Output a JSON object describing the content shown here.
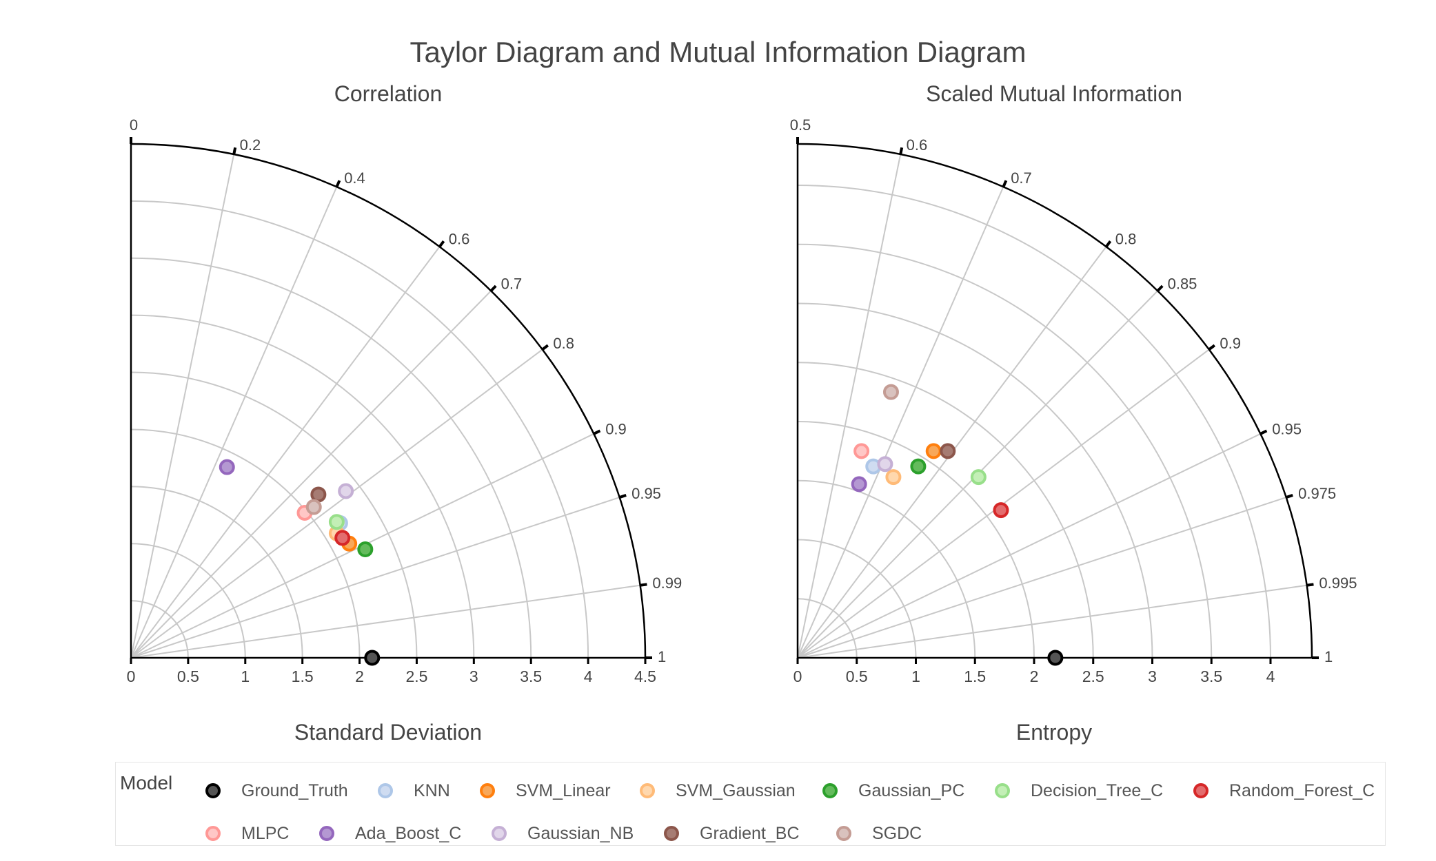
{
  "title": "Taylor Diagram and Mutual Information Diagram",
  "chart_data": [
    {
      "type": "scatter",
      "subtype": "taylor-diagram",
      "title": "Correlation",
      "xlabel": "Standard Deviation",
      "radial_range": [
        0,
        4.5
      ],
      "radial_ticks": [
        "0",
        "0.5",
        "1",
        "1.5",
        "2",
        "2.5",
        "3",
        "3.5",
        "4",
        "4.5"
      ],
      "angular_ticks": [
        "0",
        "0.2",
        "0.4",
        "0.6",
        "0.7",
        "0.8",
        "0.9",
        "0.95",
        "0.99",
        "1"
      ],
      "grid": true,
      "points": [
        {
          "model": "Ground_Truth",
          "x": 2.11,
          "y": 0.0
        },
        {
          "model": "KNN",
          "x": 1.83,
          "y": 1.18
        },
        {
          "model": "SVM_Linear",
          "x": 1.91,
          "y": 1.0
        },
        {
          "model": "SVM_Gaussian",
          "x": 1.8,
          "y": 1.09
        },
        {
          "model": "Gaussian_PC",
          "x": 2.05,
          "y": 0.95
        },
        {
          "model": "Decision_Tree_C",
          "x": 1.8,
          "y": 1.19
        },
        {
          "model": "Random_Forest_C",
          "x": 1.85,
          "y": 1.05
        },
        {
          "model": "MLPC",
          "x": 1.52,
          "y": 1.27
        },
        {
          "model": "Ada_Boost_C",
          "x": 0.84,
          "y": 1.67
        },
        {
          "model": "Gaussian_NB",
          "x": 1.88,
          "y": 1.46
        },
        {
          "model": "Gradient_BC",
          "x": 1.64,
          "y": 1.43
        },
        {
          "model": "SGDC",
          "x": 1.6,
          "y": 1.32
        }
      ]
    },
    {
      "type": "scatter",
      "subtype": "mutual-information-diagram",
      "title": "Scaled Mutual Information",
      "xlabel": "Entropy",
      "radial_range": [
        0,
        4.35
      ],
      "radial_ticks": [
        "0",
        "0.5",
        "1",
        "1.5",
        "2",
        "2.5",
        "3",
        "3.5",
        "4"
      ],
      "angular_ticks": [
        "0.5",
        "0.6",
        "0.7",
        "0.8",
        "0.85",
        "0.9",
        "0.95",
        "0.975",
        "0.995",
        "1"
      ],
      "grid": true,
      "points": [
        {
          "model": "Ground_Truth",
          "x": 2.18,
          "y": 0.0
        },
        {
          "model": "KNN",
          "x": 0.64,
          "y": 1.62
        },
        {
          "model": "SVM_Linear",
          "x": 1.15,
          "y": 1.75
        },
        {
          "model": "SVM_Gaussian",
          "x": 0.81,
          "y": 1.53
        },
        {
          "model": "Gaussian_PC",
          "x": 1.02,
          "y": 1.62
        },
        {
          "model": "Decision_Tree_C",
          "x": 1.53,
          "y": 1.53
        },
        {
          "model": "Random_Forest_C",
          "x": 1.72,
          "y": 1.25
        },
        {
          "model": "MLPC",
          "x": 0.54,
          "y": 1.75
        },
        {
          "model": "Ada_Boost_C",
          "x": 0.52,
          "y": 1.47
        },
        {
          "model": "Gaussian_NB",
          "x": 0.74,
          "y": 1.64
        },
        {
          "model": "Gradient_BC",
          "x": 1.27,
          "y": 1.75
        },
        {
          "model": "SGDC",
          "x": 0.79,
          "y": 2.25
        }
      ]
    }
  ],
  "legend": {
    "title": "Model",
    "placement": "bottom",
    "items": [
      {
        "name": "Ground_Truth",
        "fill": "#555555",
        "stroke": "#000000"
      },
      {
        "name": "KNN",
        "fill": "#cfdcf1",
        "stroke": "#aec7e8"
      },
      {
        "name": "SVM_Linear",
        "fill": "#f8a85a",
        "stroke": "#ff7f0e"
      },
      {
        "name": "SVM_Gaussian",
        "fill": "#ffd8ae",
        "stroke": "#ffbb78"
      },
      {
        "name": "Gaussian_PC",
        "fill": "#64bb5c",
        "stroke": "#2ca02c"
      },
      {
        "name": "Decision_Tree_C",
        "fill": "#c3efb6",
        "stroke": "#98df8a"
      },
      {
        "name": "Random_Forest_C",
        "fill": "#e36d6e",
        "stroke": "#d62728"
      },
      {
        "name": "MLPC",
        "fill": "#ffc7c6",
        "stroke": "#ff9896"
      },
      {
        "name": "Ada_Boost_C",
        "fill": "#b498d2",
        "stroke": "#9467bd"
      },
      {
        "name": "Gaussian_NB",
        "fill": "#e1d6ea",
        "stroke": "#c5b0d5"
      },
      {
        "name": "Gradient_BC",
        "fill": "#a67c73",
        "stroke": "#8c564b"
      },
      {
        "name": "SGDC",
        "fill": "#d9c2be",
        "stroke": "#c49c94"
      }
    ]
  }
}
